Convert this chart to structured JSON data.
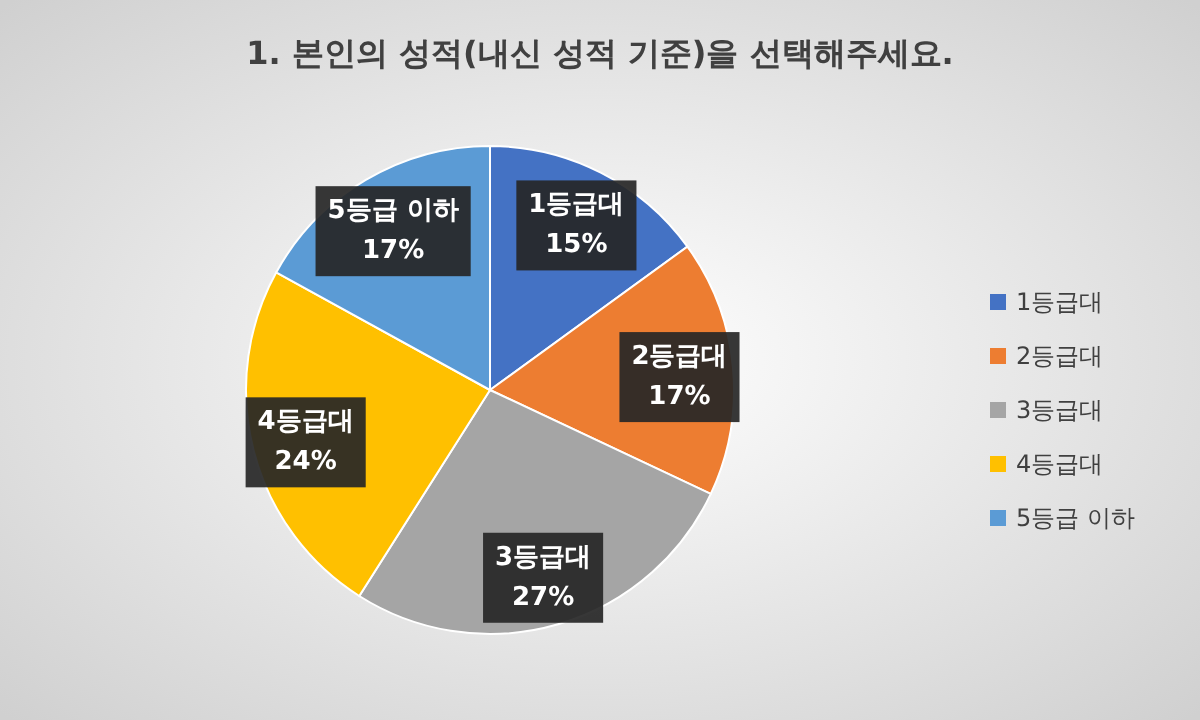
{
  "chart_data": {
    "type": "pie",
    "title": "1. 본인의 성적(내신 성적 기준)을 선택해주세요.",
    "categories": [
      "1등급대",
      "2등급대",
      "3등급대",
      "4등급대",
      "5등급 이하"
    ],
    "values": [
      15,
      17,
      27,
      24,
      17
    ],
    "colors": [
      "#4472c4",
      "#ed7d31",
      "#a5a5a5",
      "#ffc000",
      "#5b9bd5"
    ],
    "value_labels": [
      "15%",
      "17%",
      "27%",
      "24%",
      "17%"
    ],
    "legend": "right"
  }
}
